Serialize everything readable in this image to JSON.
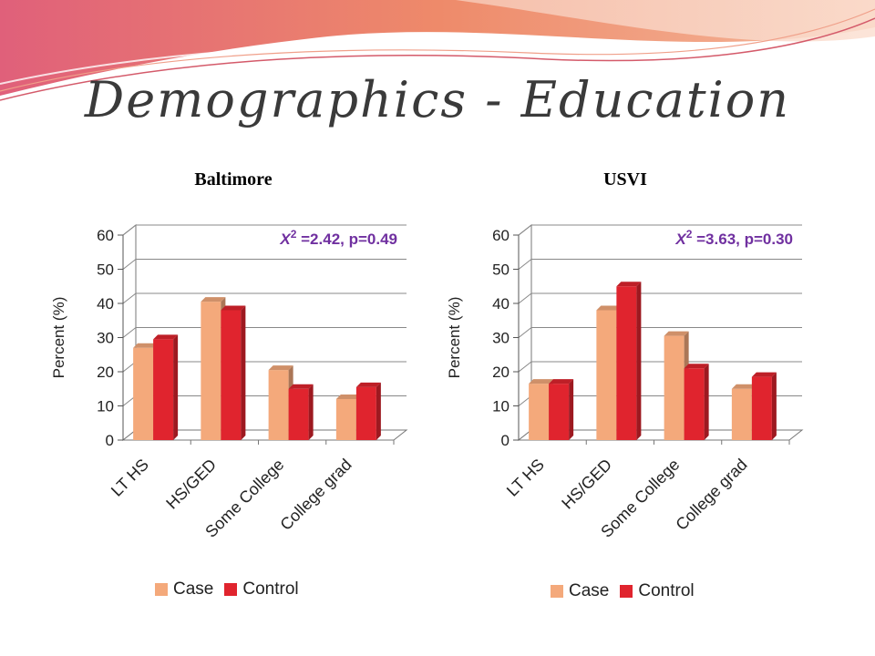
{
  "title": "Demographics - Education",
  "colors": {
    "case": "#f4a97b",
    "control": "#e0242e",
    "stat": "#7030a0"
  },
  "legend": {
    "case_label": "Case",
    "control_label": "Control"
  },
  "chart_data": [
    {
      "type": "bar",
      "title": "Baltimore",
      "annotation": {
        "symbol": "X",
        "sup": "2",
        "text": " =2.42, p=0.49"
      },
      "ylabel": "Percent (%)",
      "ylim": [
        0,
        60
      ],
      "yticks": [
        0,
        10,
        20,
        30,
        40,
        50,
        60
      ],
      "categories": [
        "LT HS",
        "HS/GED",
        "Some College",
        "College grad"
      ],
      "series": [
        {
          "name": "Case",
          "values": [
            27,
            40.5,
            20.5,
            12
          ]
        },
        {
          "name": "Control",
          "values": [
            29.5,
            38,
            15,
            15.5
          ]
        }
      ],
      "legend_position": "bottom"
    },
    {
      "type": "bar",
      "title": "USVI",
      "annotation": {
        "symbol": "X",
        "sup": "2",
        "text": " =3.63, p=0.30"
      },
      "ylabel": "Percent (%)",
      "ylim": [
        0,
        60
      ],
      "yticks": [
        0,
        10,
        20,
        30,
        40,
        50,
        60
      ],
      "categories": [
        "LT HS",
        "HS/GED",
        "Some College",
        "College grad"
      ],
      "series": [
        {
          "name": "Case",
          "values": [
            16.5,
            38,
            30.5,
            15
          ]
        },
        {
          "name": "Control",
          "values": [
            16.5,
            45,
            21,
            18.5
          ]
        }
      ],
      "legend_position": "bottom"
    }
  ]
}
